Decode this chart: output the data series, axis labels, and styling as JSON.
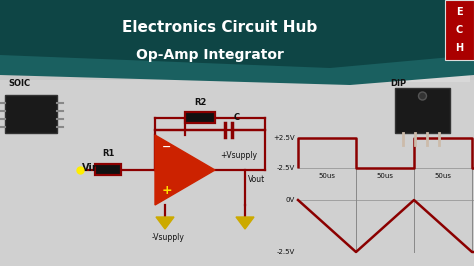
{
  "title_line1": "Electronics Circuit Hub",
  "title_line2": "Op-Amp Integrator",
  "bg_color": "#c8c8c8",
  "header_bg": "#1a5f5f",
  "header_dark": "#0f3d3d",
  "circuit_color": "#8b0000",
  "ground_color": "#ccaa00",
  "text_color": "white",
  "dark_text": "#111111",
  "soic_label": "SOIC",
  "dip_label": "DIP",
  "vin_label": "Vin",
  "r1_label": "R1",
  "r2_label": "R2",
  "c_label": "C",
  "vplus_label": "+Vsupply",
  "vminus_label": "-Vsupply",
  "vout_label": "Vout",
  "plus25_label": "+2.5V",
  "minus25_label": "-2.5V",
  "zero_label": "0V",
  "minus25b_label": "-2.5V",
  "time_labels": [
    "50us",
    "50us",
    "50us"
  ],
  "logo_letters": [
    "E",
    "C",
    "H"
  ],
  "logo_color": "#aa0000"
}
